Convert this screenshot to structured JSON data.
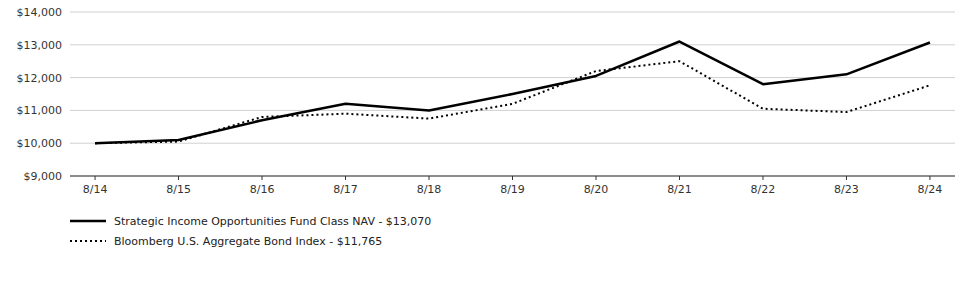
{
  "chart_data": {
    "type": "line",
    "categories": [
      "8/14",
      "8/15",
      "8/16",
      "8/17",
      "8/18",
      "8/19",
      "8/20",
      "8/21",
      "8/22",
      "8/23",
      "8/24"
    ],
    "series": [
      {
        "name": "Strategic Income Opportunities Fund Class NAV - $13,070",
        "color": "#000000",
        "line_style": "solid",
        "values": [
          10000,
          10100,
          10700,
          11200,
          11000,
          11500,
          12050,
          13100,
          11800,
          12100,
          13070
        ]
      },
      {
        "name": "Bloomberg U.S. Aggregate Bond Index - $11,765",
        "color": "#000000",
        "line_style": "dotted",
        "values": [
          10000,
          10050,
          10800,
          10900,
          10750,
          11200,
          12200,
          12500,
          11050,
          10950,
          11765
        ]
      }
    ],
    "ylim": [
      9000,
      14000
    ],
    "yticks": [
      {
        "value": 9000,
        "label": "$9,000"
      },
      {
        "value": 10000,
        "label": "$10,000"
      },
      {
        "value": 11000,
        "label": "$11,000"
      },
      {
        "value": 12000,
        "label": "$12,000"
      },
      {
        "value": 13000,
        "label": "$13,000"
      },
      {
        "value": 14000,
        "label": "$14,000"
      }
    ],
    "grid": true,
    "legend": "bottom"
  }
}
